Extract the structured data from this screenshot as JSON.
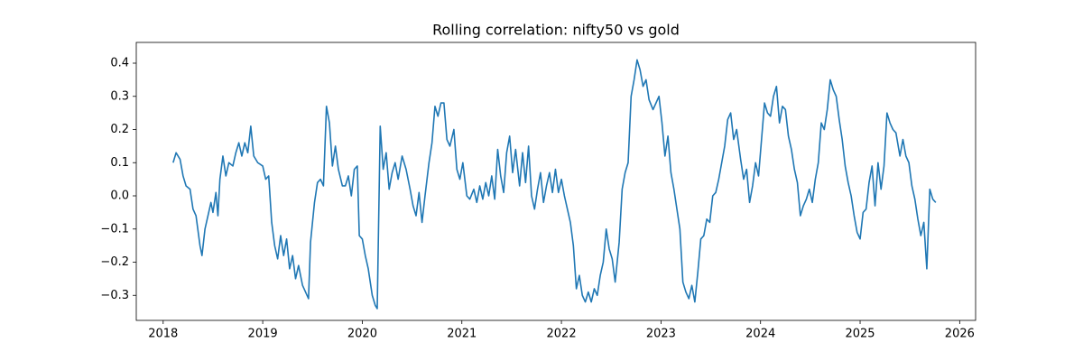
{
  "chart_data": {
    "type": "line",
    "title": "Rolling correlation: nifty50 vs gold",
    "x": [
      2018.1,
      2018.13,
      2018.17,
      2018.2,
      2018.23,
      2018.27,
      2018.3,
      2018.33,
      2018.37,
      2018.39,
      2018.42,
      2018.45,
      2018.48,
      2018.5,
      2018.53,
      2018.55,
      2018.57,
      2018.6,
      2018.63,
      2018.66,
      2018.7,
      2018.73,
      2018.76,
      2018.79,
      2018.82,
      2018.85,
      2018.88,
      2018.91,
      2018.95,
      2019.0,
      2019.03,
      2019.06,
      2019.09,
      2019.12,
      2019.15,
      2019.18,
      2019.21,
      2019.24,
      2019.27,
      2019.3,
      2019.33,
      2019.36,
      2019.4,
      2019.43,
      2019.46,
      2019.48,
      2019.52,
      2019.55,
      2019.58,
      2019.61,
      2019.64,
      2019.67,
      2019.7,
      2019.73,
      2019.76,
      2019.8,
      2019.83,
      2019.86,
      2019.89,
      2019.92,
      2019.95,
      2019.97,
      2020.0,
      2020.03,
      2020.06,
      2020.1,
      2020.13,
      2020.15,
      2020.18,
      2020.21,
      2020.24,
      2020.27,
      2020.3,
      2020.33,
      2020.36,
      2020.4,
      2020.44,
      2020.48,
      2020.51,
      2020.54,
      2020.57,
      2020.6,
      2020.63,
      2020.67,
      2020.7,
      2020.73,
      2020.76,
      2020.79,
      2020.82,
      2020.85,
      2020.88,
      2020.92,
      2020.95,
      2020.98,
      2021.01,
      2021.05,
      2021.08,
      2021.12,
      2021.15,
      2021.18,
      2021.21,
      2021.24,
      2021.27,
      2021.3,
      2021.33,
      2021.36,
      2021.39,
      2021.42,
      2021.45,
      2021.48,
      2021.51,
      2021.54,
      2021.58,
      2021.61,
      2021.64,
      2021.67,
      2021.7,
      2021.73,
      2021.76,
      2021.79,
      2021.82,
      2021.85,
      2021.88,
      2021.91,
      2021.94,
      2021.97,
      2022.0,
      2022.03,
      2022.06,
      2022.09,
      2022.12,
      2022.15,
      2022.18,
      2022.21,
      2022.24,
      2022.27,
      2022.3,
      2022.33,
      2022.36,
      2022.39,
      2022.42,
      2022.45,
      2022.48,
      2022.51,
      2022.54,
      2022.58,
      2022.61,
      2022.64,
      2022.67,
      2022.7,
      2022.73,
      2022.76,
      2022.79,
      2022.82,
      2022.85,
      2022.88,
      2022.92,
      2022.95,
      2022.98,
      2023.01,
      2023.04,
      2023.07,
      2023.1,
      2023.13,
      2023.16,
      2023.19,
      2023.22,
      2023.25,
      2023.28,
      2023.31,
      2023.34,
      2023.37,
      2023.4,
      2023.43,
      2023.46,
      2023.49,
      2023.52,
      2023.55,
      2023.58,
      2023.61,
      2023.64,
      2023.67,
      2023.7,
      2023.73,
      2023.76,
      2023.8,
      2023.83,
      2023.86,
      2023.89,
      2023.92,
      2023.95,
      2023.98,
      2024.01,
      2024.04,
      2024.07,
      2024.1,
      2024.13,
      2024.16,
      2024.19,
      2024.22,
      2024.25,
      2024.28,
      2024.31,
      2024.34,
      2024.37,
      2024.4,
      2024.43,
      2024.46,
      2024.49,
      2024.52,
      2024.55,
      2024.58,
      2024.61,
      2024.64,
      2024.67,
      2024.7,
      2024.73,
      2024.76,
      2024.79,
      2024.82,
      2024.85,
      2024.88,
      2024.91,
      2024.94,
      2024.97,
      2025.0,
      2025.03,
      2025.06,
      2025.09,
      2025.12,
      2025.15,
      2025.18,
      2025.21,
      2025.24,
      2025.27,
      2025.3,
      2025.33,
      2025.36,
      2025.4,
      2025.43,
      2025.46,
      2025.49,
      2025.52,
      2025.55,
      2025.58,
      2025.61,
      2025.64,
      2025.67,
      2025.7,
      2025.73,
      2025.76
    ],
    "series": [
      {
        "color": "#1f77b4",
        "values": [
          0.1,
          0.13,
          0.11,
          0.06,
          0.03,
          0.02,
          -0.04,
          -0.06,
          -0.15,
          -0.18,
          -0.1,
          -0.06,
          -0.02,
          -0.05,
          0.01,
          -0.06,
          0.05,
          0.12,
          0.06,
          0.1,
          0.09,
          0.13,
          0.16,
          0.12,
          0.16,
          0.13,
          0.21,
          0.12,
          0.1,
          0.09,
          0.05,
          0.06,
          -0.08,
          -0.15,
          -0.19,
          -0.12,
          -0.18,
          -0.13,
          -0.22,
          -0.18,
          -0.25,
          -0.21,
          -0.27,
          -0.29,
          -0.31,
          -0.14,
          -0.02,
          0.04,
          0.05,
          0.03,
          0.27,
          0.22,
          0.09,
          0.15,
          0.08,
          0.03,
          0.03,
          0.06,
          0.0,
          0.08,
          0.09,
          -0.12,
          -0.13,
          -0.18,
          -0.22,
          -0.3,
          -0.33,
          -0.34,
          0.21,
          0.08,
          0.13,
          0.02,
          0.07,
          0.1,
          0.05,
          0.12,
          0.08,
          0.02,
          -0.03,
          -0.06,
          0.01,
          -0.08,
          0.0,
          0.1,
          0.16,
          0.27,
          0.24,
          0.28,
          0.28,
          0.17,
          0.15,
          0.2,
          0.08,
          0.05,
          0.1,
          0.0,
          -0.01,
          0.02,
          -0.02,
          0.03,
          -0.01,
          0.04,
          0.0,
          0.06,
          -0.01,
          0.14,
          0.06,
          0.01,
          0.13,
          0.18,
          0.07,
          0.14,
          0.03,
          0.13,
          0.04,
          0.15,
          0.0,
          -0.04,
          0.02,
          0.07,
          -0.02,
          0.03,
          0.07,
          0.01,
          0.08,
          0.01,
          0.05,
          0.0,
          -0.04,
          -0.08,
          -0.15,
          -0.28,
          -0.24,
          -0.3,
          -0.32,
          -0.29,
          -0.32,
          -0.28,
          -0.3,
          -0.24,
          -0.2,
          -0.1,
          -0.16,
          -0.19,
          -0.26,
          -0.14,
          0.02,
          0.07,
          0.1,
          0.3,
          0.35,
          0.41,
          0.38,
          0.33,
          0.35,
          0.29,
          0.26,
          0.28,
          0.3,
          0.22,
          0.12,
          0.18,
          0.07,
          0.02,
          -0.04,
          -0.1,
          -0.26,
          -0.29,
          -0.31,
          -0.27,
          -0.32,
          -0.23,
          -0.13,
          -0.12,
          -0.07,
          -0.08,
          0.0,
          0.01,
          0.05,
          0.1,
          0.15,
          0.23,
          0.25,
          0.17,
          0.2,
          0.11,
          0.05,
          0.08,
          -0.02,
          0.03,
          0.1,
          0.06,
          0.17,
          0.28,
          0.25,
          0.24,
          0.3,
          0.33,
          0.22,
          0.27,
          0.26,
          0.18,
          0.14,
          0.08,
          0.04,
          -0.06,
          -0.03,
          -0.01,
          0.02,
          -0.02,
          0.05,
          0.1,
          0.22,
          0.2,
          0.26,
          0.35,
          0.32,
          0.3,
          0.23,
          0.17,
          0.09,
          0.04,
          0.0,
          -0.06,
          -0.11,
          -0.13,
          -0.05,
          -0.04,
          0.04,
          0.09,
          -0.03,
          0.1,
          0.02,
          0.09,
          0.25,
          0.22,
          0.2,
          0.19,
          0.12,
          0.17,
          0.12,
          0.1,
          0.03,
          -0.01,
          -0.07,
          -0.12,
          -0.08,
          -0.22,
          0.02,
          -0.01,
          -0.02
        ]
      }
    ],
    "xlim": [
      2017.73,
      2026.16
    ],
    "xticks": [
      2018,
      2019,
      2020,
      2021,
      2022,
      2023,
      2024,
      2025,
      2026
    ],
    "ylim": [
      -0.3755,
      0.4626
    ],
    "yticks": [
      {
        "value": -0.3,
        "label": "−0.3"
      },
      {
        "value": -0.2,
        "label": "−0.2"
      },
      {
        "value": -0.1,
        "label": "−0.1"
      },
      {
        "value": 0,
        "label": "0.0"
      },
      0.1,
      0.2,
      0.3,
      0.4
    ]
  }
}
